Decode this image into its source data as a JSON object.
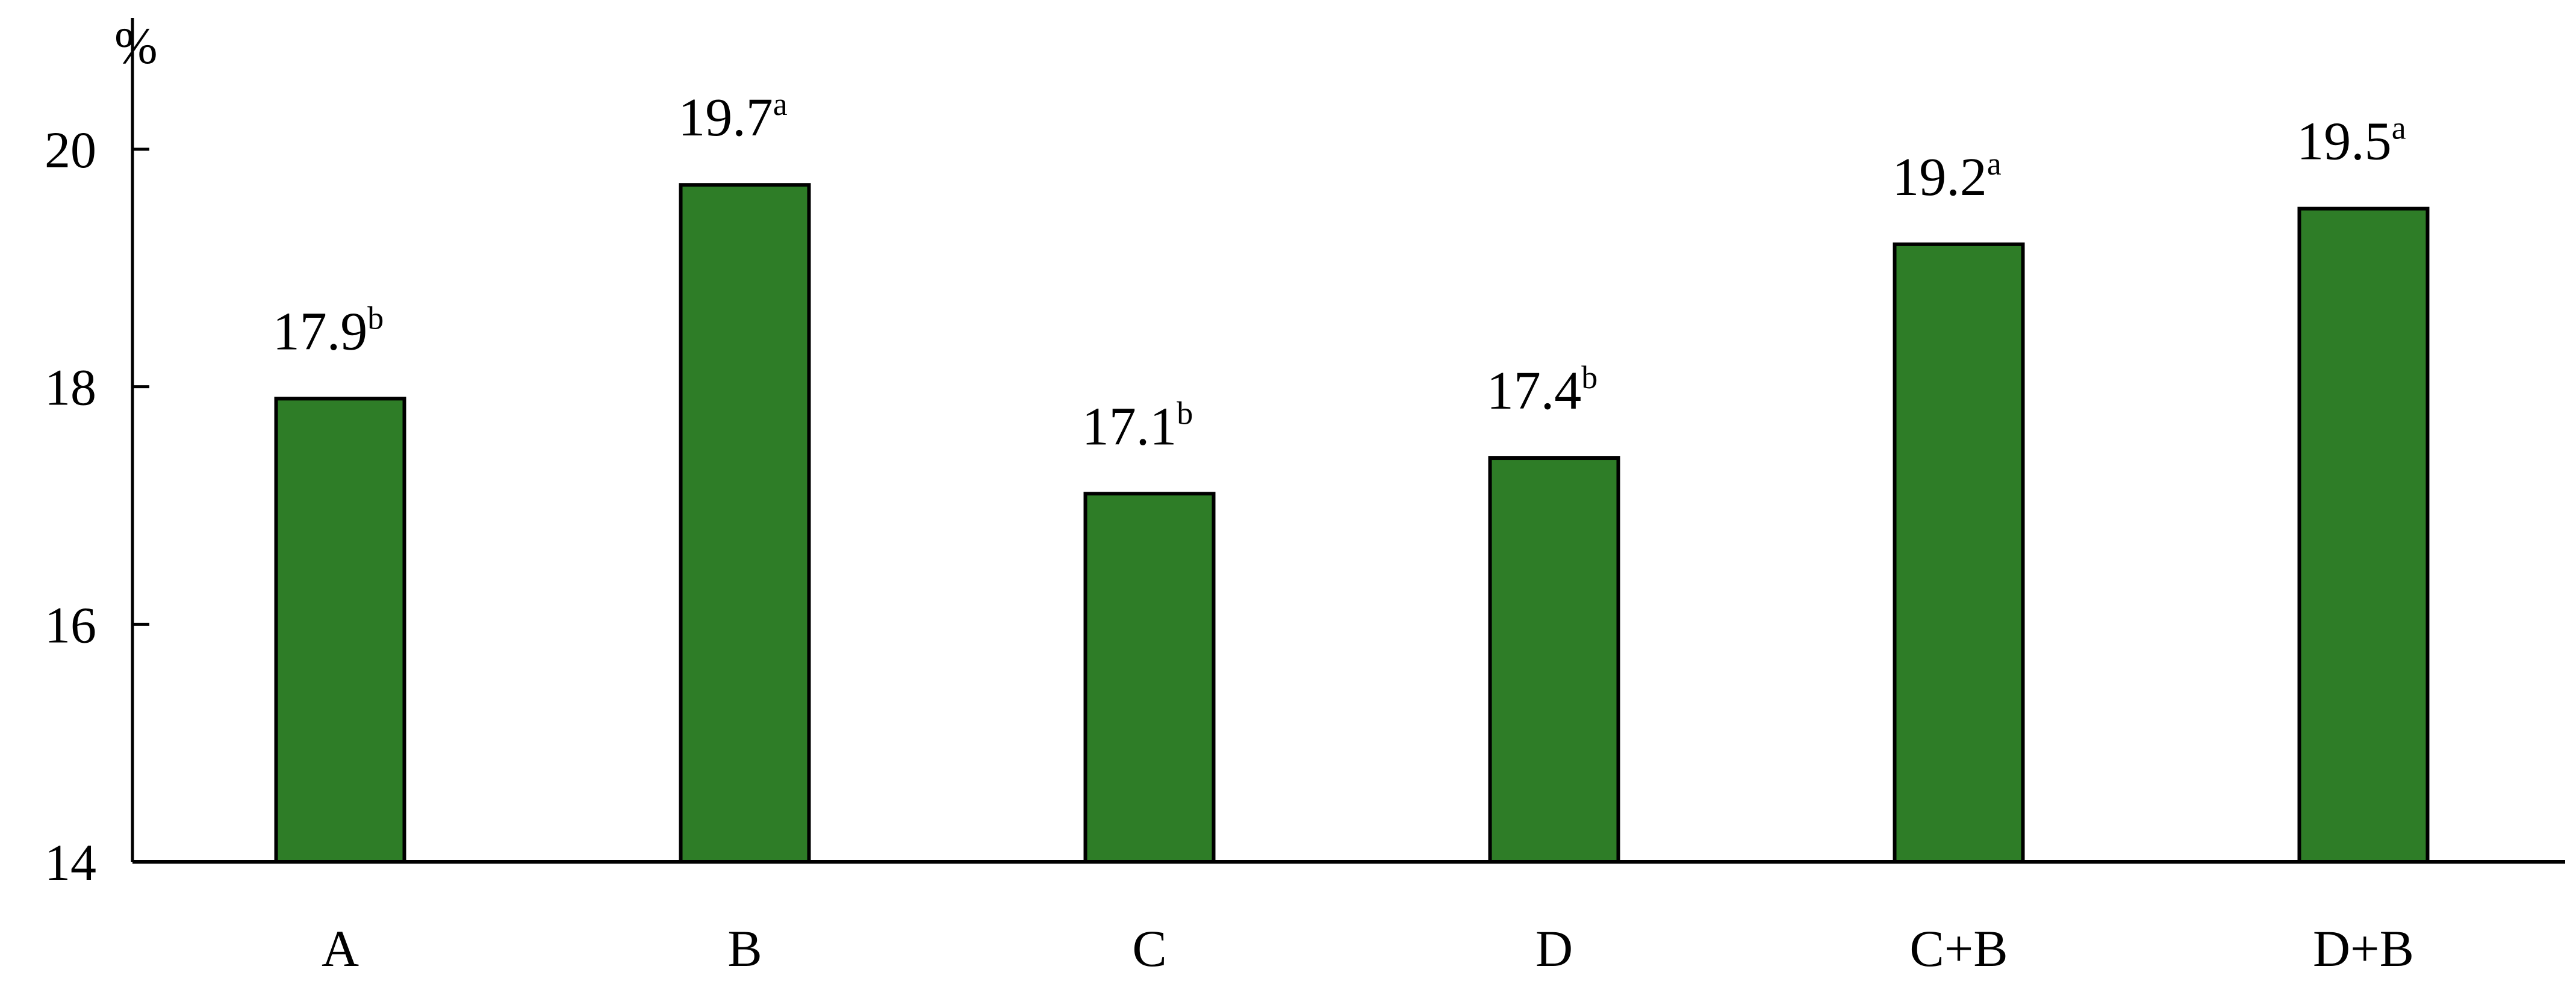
{
  "chart_data": {
    "type": "bar",
    "title": "",
    "xlabel": "",
    "ylabel": "%",
    "categories": [
      "A",
      "B",
      "C",
      "D",
      "C+B",
      "D+B"
    ],
    "values": [
      17.9,
      19.7,
      17.1,
      17.4,
      19.2,
      19.5
    ],
    "value_labels": [
      "17.9",
      "19.7",
      "17.1",
      "17.4",
      "19.2",
      "19.5"
    ],
    "significance_letters": [
      "b",
      "a",
      "b",
      "b",
      "a",
      "a"
    ],
    "ylim": [
      14,
      20
    ],
    "yticks": [
      14,
      16,
      18,
      20
    ],
    "grid": false,
    "legend": "none",
    "colors": {
      "bar_fill": "#2e7d27",
      "bar_stroke": "#000000",
      "axis": "#000000"
    }
  }
}
